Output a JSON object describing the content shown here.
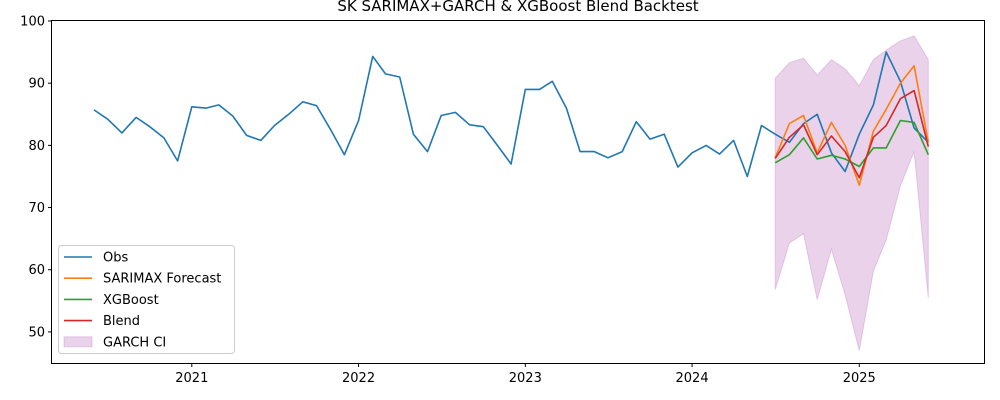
{
  "chart_data": {
    "type": "line",
    "title": "SK SARIMAX+GARCH & XGBoost Blend Backtest",
    "xlabel": "",
    "ylabel": "",
    "x_ticks": [
      "2021",
      "2022",
      "2023",
      "2024",
      "2025"
    ],
    "y_ticks": [
      50,
      60,
      70,
      80,
      90,
      100
    ],
    "xlim": [
      "2020-03-01",
      "2025-10-01"
    ],
    "ylim": [
      45,
      100
    ],
    "grid": false,
    "legend_position": "lower-left",
    "observed": {
      "name": "Obs",
      "color": "#1f77b4",
      "x": [
        "2020-06",
        "2020-07",
        "2020-08",
        "2020-09",
        "2020-10",
        "2020-11",
        "2020-12",
        "2021-01",
        "2021-02",
        "2021-03",
        "2021-04",
        "2021-05",
        "2021-06",
        "2021-07",
        "2021-08",
        "2021-09",
        "2021-10",
        "2021-11",
        "2021-12",
        "2022-01",
        "2022-02",
        "2022-03",
        "2022-04",
        "2022-05",
        "2022-06",
        "2022-07",
        "2022-08",
        "2022-09",
        "2022-10",
        "2022-11",
        "2022-12",
        "2023-01",
        "2023-02",
        "2023-03",
        "2023-04",
        "2023-05",
        "2023-06",
        "2023-07",
        "2023-08",
        "2023-09",
        "2023-10",
        "2023-11",
        "2023-12",
        "2024-01",
        "2024-02",
        "2024-03",
        "2024-04",
        "2024-05",
        "2024-06",
        "2024-07",
        "2024-08",
        "2024-09",
        "2024-10",
        "2024-11",
        "2024-12",
        "2025-01",
        "2025-02",
        "2025-03",
        "2025-04",
        "2025-05",
        "2025-06"
      ],
      "values": [
        85.7,
        84.2,
        82.0,
        84.5,
        83.0,
        81.2,
        77.5,
        86.2,
        86.0,
        86.5,
        84.7,
        81.6,
        80.8,
        83.2,
        85.0,
        87.0,
        86.4,
        82.5,
        78.5,
        84.0,
        94.3,
        91.5,
        91.0,
        81.8,
        79.0,
        84.8,
        85.3,
        83.3,
        83.0,
        80.0,
        77.0,
        89.0,
        89.0,
        90.3,
        86.0,
        79.0,
        79.0,
        78.0,
        79.0,
        83.8,
        81.0,
        81.8,
        76.5,
        78.8,
        80.0,
        78.6,
        80.8,
        75.0,
        83.2,
        81.8,
        80.5,
        83.5,
        85.0,
        78.8,
        75.8,
        81.8,
        86.5,
        95.0,
        90.3,
        82.8,
        80.5
      ]
    },
    "forecast_x": [
      "2024-07",
      "2024-08",
      "2024-09",
      "2024-10",
      "2024-11",
      "2024-12",
      "2025-01",
      "2025-02",
      "2025-03",
      "2025-04",
      "2025-05",
      "2025-06"
    ],
    "series": [
      {
        "name": "SARIMAX Forecast",
        "color": "#ff7f0e",
        "values": [
          78.0,
          83.5,
          84.8,
          78.8,
          83.7,
          80.0,
          73.6,
          82.3,
          85.8,
          90.0,
          92.8,
          80.5
        ]
      },
      {
        "name": "XGBoost",
        "color": "#2ca02c",
        "values": [
          77.2,
          78.5,
          81.2,
          77.8,
          78.4,
          77.8,
          76.6,
          79.6,
          79.6,
          84.0,
          83.7,
          78.5
        ]
      },
      {
        "name": "Blend",
        "color": "#d62728",
        "values": [
          77.9,
          81.3,
          83.3,
          78.5,
          81.5,
          79.0,
          74.8,
          81.3,
          83.2,
          87.5,
          88.8,
          79.8
        ]
      }
    ],
    "confidence_band": {
      "name": "GARCH CI",
      "color": "#c27ec2",
      "opacity": 0.35,
      "lower": [
        56.8,
        64.3,
        65.8,
        55.2,
        63.3,
        56.0,
        47.0,
        59.8,
        64.8,
        73.5,
        79.0,
        55.5
      ],
      "upper": [
        90.8,
        93.3,
        94.0,
        91.3,
        93.8,
        92.3,
        89.6,
        93.8,
        95.3,
        96.8,
        97.6,
        93.8
      ]
    },
    "legend": [
      "Obs",
      "SARIMAX Forecast",
      "XGBoost",
      "Blend",
      "GARCH CI"
    ]
  }
}
